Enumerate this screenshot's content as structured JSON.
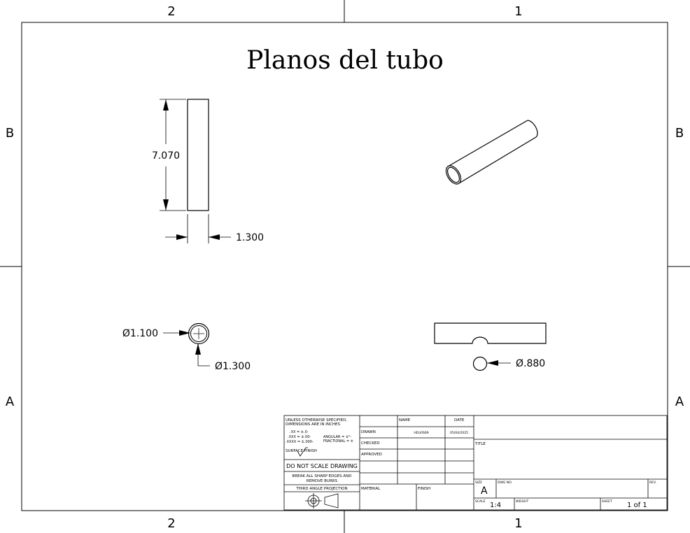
{
  "drawing": {
    "title": "Planos del tubo",
    "zones": {
      "columns": [
        "2",
        "1"
      ],
      "rows": [
        "B",
        "A"
      ]
    }
  },
  "dimensions": {
    "height": "7.070",
    "width": "1.300",
    "inner_diameter": "Ø1.100",
    "outer_diameter": "Ø1.300",
    "hole_diameter": "Ø.880"
  },
  "title_block": {
    "notes": {
      "line1": "UNLESS OTHERWISE SPECIFIED,",
      "line2": "DIMENSIONS ARE IN INCHES",
      "tol_x": ".XX = ±.0-",
      "tol_xx": ".XXX = ±.00-",
      "tol_xxx": ".XXXX = ±.000-",
      "angular": "ANGULAR = ±°-",
      "fractional": "FRACTIONAL = ±",
      "surface_finish": "SURFACE FINISH",
      "no_scale": "DO NOT SCALE DRAWING",
      "break_edges_1": "BREAK ALL SHARP EDGES AND",
      "break_edges_2": "REMOVE BURRS",
      "projection": "THIRD ANGLE PROJECTION"
    },
    "headers": {
      "name": "NAME",
      "date": "DATE"
    },
    "rows": {
      "drawn": "DRAWN",
      "checked": "CHECKED",
      "approved": "APPROVED"
    },
    "drawn_name": "HELVIS69",
    "drawn_date": "05/04/2025",
    "material_label": "MATERIAL",
    "finish_label": "FINISH",
    "title_label": "TITLE",
    "size_label": "SIZE",
    "size_value": "A",
    "dwg_no_label": "DWG NO.",
    "rev_label": "REV.",
    "scale_label": "SCALE",
    "scale_value": "1:4",
    "weight_label": "WEIGHT",
    "sheet_label": "SHEET",
    "sheet_value": "1 of 1"
  }
}
